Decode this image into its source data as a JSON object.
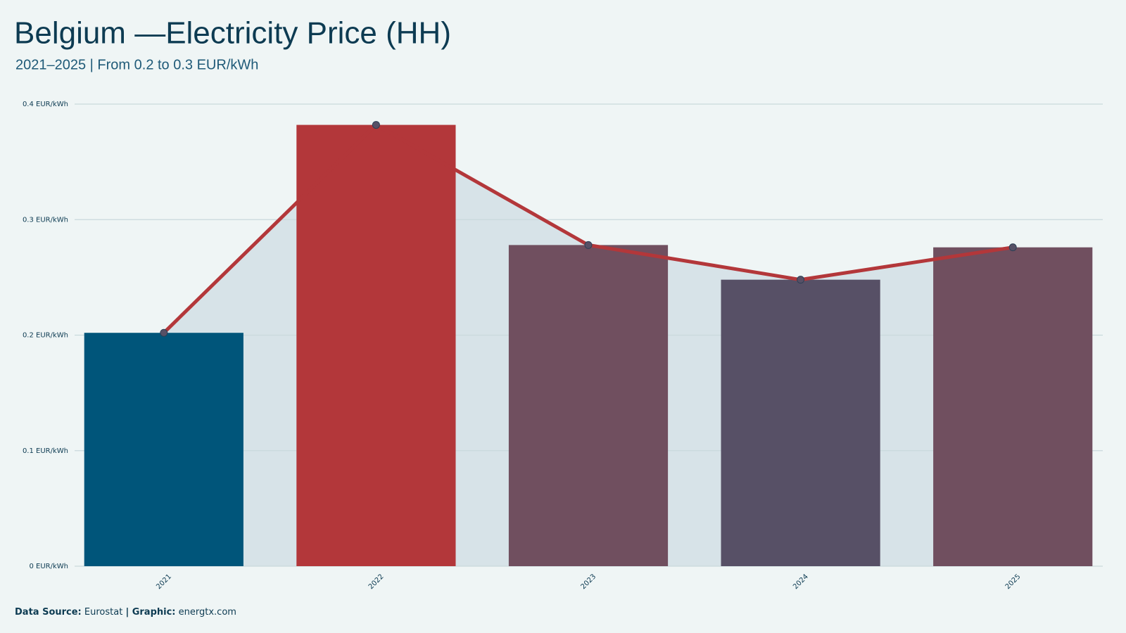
{
  "chart_data": {
    "type": "bar",
    "title": "Belgium —Electricity Price (HH)",
    "subtitle": "2021–2025 | From 0.2 to 0.3 EUR/kWh",
    "categories": [
      "2021",
      "2022",
      "2023",
      "2024",
      "2025"
    ],
    "values": [
      0.202,
      0.382,
      0.278,
      0.248,
      0.276
    ],
    "colors": [
      "#00557a",
      "#b3373a",
      "#704f5f",
      "#575066",
      "#704f5f"
    ],
    "line": true,
    "line_color": "#b3373a",
    "area_color": "#d7e3e8",
    "ylim": [
      0,
      0.4
    ],
    "yticks": [
      {
        "value": 0,
        "label": "0 EUR/kWh"
      },
      {
        "value": 0.1,
        "label": "0.1 EUR/kWh"
      },
      {
        "value": 0.2,
        "label": "0.2 EUR/kWh"
      },
      {
        "value": 0.3,
        "label": "0.3 EUR/kWh"
      },
      {
        "value": 0.4,
        "label": "0.4 EUR/kWh"
      }
    ],
    "grid": true,
    "footer": {
      "source_label": "Data Source:",
      "source": "Eurostat",
      "graphic_label": "| Graphic:",
      "graphic": "energtx.com"
    }
  }
}
